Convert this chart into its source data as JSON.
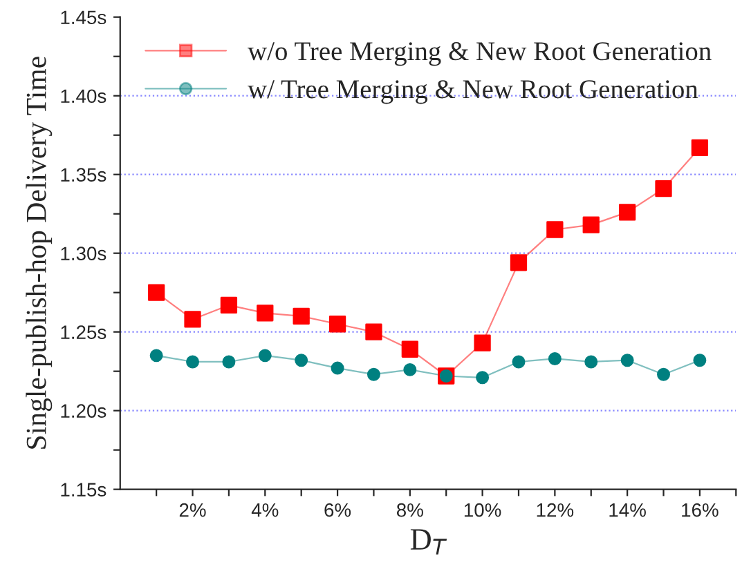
{
  "chart_data": {
    "type": "line",
    "xlabel": "D$_{T}$",
    "ylabel": "Single-publish-hop Delivery Time",
    "x": [
      1,
      2,
      3,
      4,
      5,
      6,
      7,
      8,
      9,
      10,
      11,
      12,
      13,
      14,
      15,
      16
    ],
    "series": [
      {
        "name": "w/o Tree Merging & New Root Generation",
        "color": "#ff0000",
        "marker": "square",
        "values": [
          1.275,
          1.258,
          1.267,
          1.262,
          1.26,
          1.255,
          1.25,
          1.239,
          1.222,
          1.243,
          1.294,
          1.315,
          1.318,
          1.326,
          1.341,
          1.367
        ]
      },
      {
        "name": "w/ Tree Merging & New Root Generation",
        "color": "#008080",
        "marker": "circle",
        "values": [
          1.235,
          1.231,
          1.231,
          1.235,
          1.232,
          1.227,
          1.223,
          1.226,
          1.222,
          1.221,
          1.231,
          1.233,
          1.231,
          1.232,
          1.223,
          1.232
        ]
      }
    ],
    "xlim": [
      0,
      17
    ],
    "xticks": [
      {
        "value": 1,
        "label": null
      },
      {
        "value": 2,
        "label": "2%"
      },
      {
        "value": 3,
        "label": null
      },
      {
        "value": 4,
        "label": "4%"
      },
      {
        "value": 5,
        "label": null
      },
      {
        "value": 6,
        "label": "6%"
      },
      {
        "value": 7,
        "label": null
      },
      {
        "value": 8,
        "label": "8%"
      },
      {
        "value": 9,
        "label": null
      },
      {
        "value": 10,
        "label": "10%"
      },
      {
        "value": 11,
        "label": null
      },
      {
        "value": 12,
        "label": "12%"
      },
      {
        "value": 13,
        "label": null
      },
      {
        "value": 14,
        "label": "14%"
      },
      {
        "value": 15,
        "label": null
      },
      {
        "value": 16,
        "label": "16%"
      },
      {
        "value": 17,
        "label": null
      }
    ],
    "ylim": [
      1.15,
      1.45
    ],
    "yticks": [
      {
        "value": 1.15,
        "label": "1.15s"
      },
      {
        "value": 1.175,
        "label": null
      },
      {
        "value": 1.2,
        "label": "1.20s"
      },
      {
        "value": 1.225,
        "label": null
      },
      {
        "value": 1.25,
        "label": "1.25s"
      },
      {
        "value": 1.275,
        "label": null
      },
      {
        "value": 1.3,
        "label": "1.30s"
      },
      {
        "value": 1.325,
        "label": null
      },
      {
        "value": 1.35,
        "label": "1.35s"
      },
      {
        "value": 1.375,
        "label": null
      },
      {
        "value": 1.4,
        "label": "1.40s"
      },
      {
        "value": 1.425,
        "label": null
      },
      {
        "value": 1.45,
        "label": "1.45s"
      }
    ],
    "grid": "y",
    "legend": "top right",
    "line_style": "solid"
  }
}
